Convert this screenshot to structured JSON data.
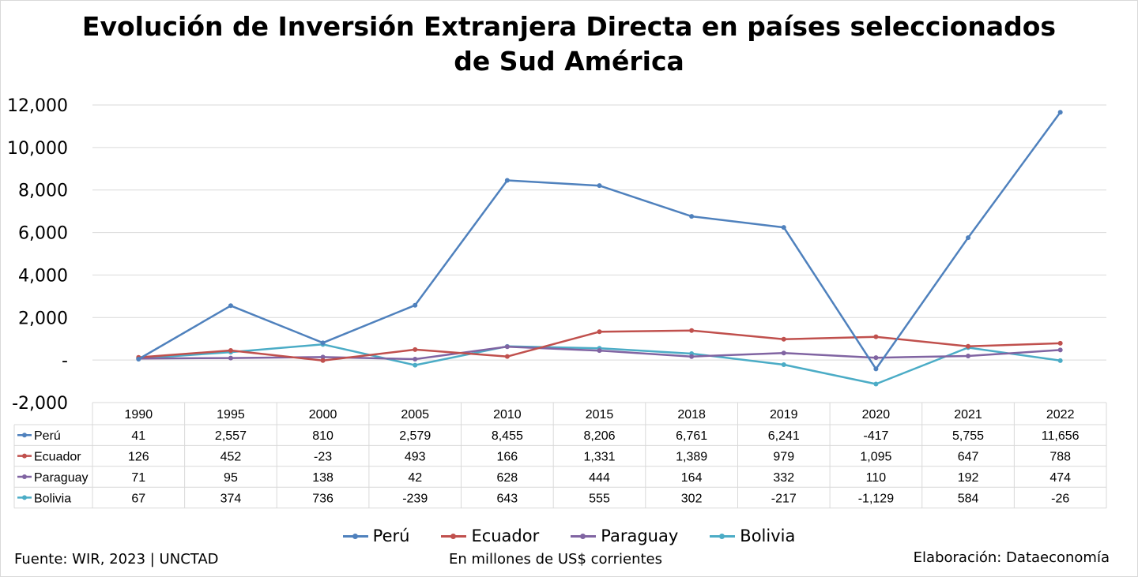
{
  "chart_data": {
    "type": "line",
    "title": [
      "Evolución de Inversión Extranjera Directa en países seleccionados",
      "de Sud América"
    ],
    "categories": [
      "1990",
      "1995",
      "2000",
      "2005",
      "2010",
      "2015",
      "2018",
      "2019",
      "2020",
      "2021",
      "2022"
    ],
    "ylim": [
      -2000,
      12000
    ],
    "yticks": [
      -2000,
      0,
      2000,
      4000,
      6000,
      8000,
      10000,
      12000
    ],
    "ytick_labels": [
      "-2,000",
      "-",
      "2,000",
      "4,000",
      "6,000",
      "8,000",
      "10,000",
      "12,000"
    ],
    "grid": true,
    "legend_position": "bottom",
    "data_table": true,
    "series": [
      {
        "name": "Perú",
        "color": "#4f81bd",
        "values": [
          41,
          2557,
          810,
          2579,
          8455,
          8206,
          6761,
          6241,
          -417,
          5755,
          11656
        ],
        "labels": [
          "41",
          "2,557",
          "810",
          "2,579",
          "8,455",
          "8,206",
          "6,761",
          "6,241",
          "-417",
          "5,755",
          "11,656"
        ]
      },
      {
        "name": "Ecuador",
        "color": "#c0504d",
        "values": [
          126,
          452,
          -23,
          493,
          166,
          1331,
          1389,
          979,
          1095,
          647,
          788
        ],
        "labels": [
          "126",
          "452",
          "-23",
          "493",
          "166",
          "1,331",
          "1,389",
          "979",
          "1,095",
          "647",
          "788"
        ]
      },
      {
        "name": "Paraguay",
        "color": "#8064a2",
        "values": [
          71,
          95,
          138,
          42,
          628,
          444,
          164,
          332,
          110,
          192,
          474
        ],
        "labels": [
          "71",
          "95",
          "138",
          "42",
          "628",
          "444",
          "164",
          "332",
          "110",
          "192",
          "474"
        ]
      },
      {
        "name": "Bolivia",
        "color": "#4bacc6",
        "values": [
          67,
          374,
          736,
          -239,
          643,
          555,
          302,
          -217,
          -1129,
          584,
          -26
        ],
        "labels": [
          "67",
          "374",
          "736",
          "-239",
          "643",
          "555",
          "302",
          "-217",
          "-1,129",
          "584",
          "-26"
        ]
      }
    ]
  },
  "footer": {
    "source": "Fuente: WIR, 2023 | UNCTAD",
    "units": "En millones de US$ corrientes",
    "credit": "Elaboración: Dataeconomía"
  }
}
